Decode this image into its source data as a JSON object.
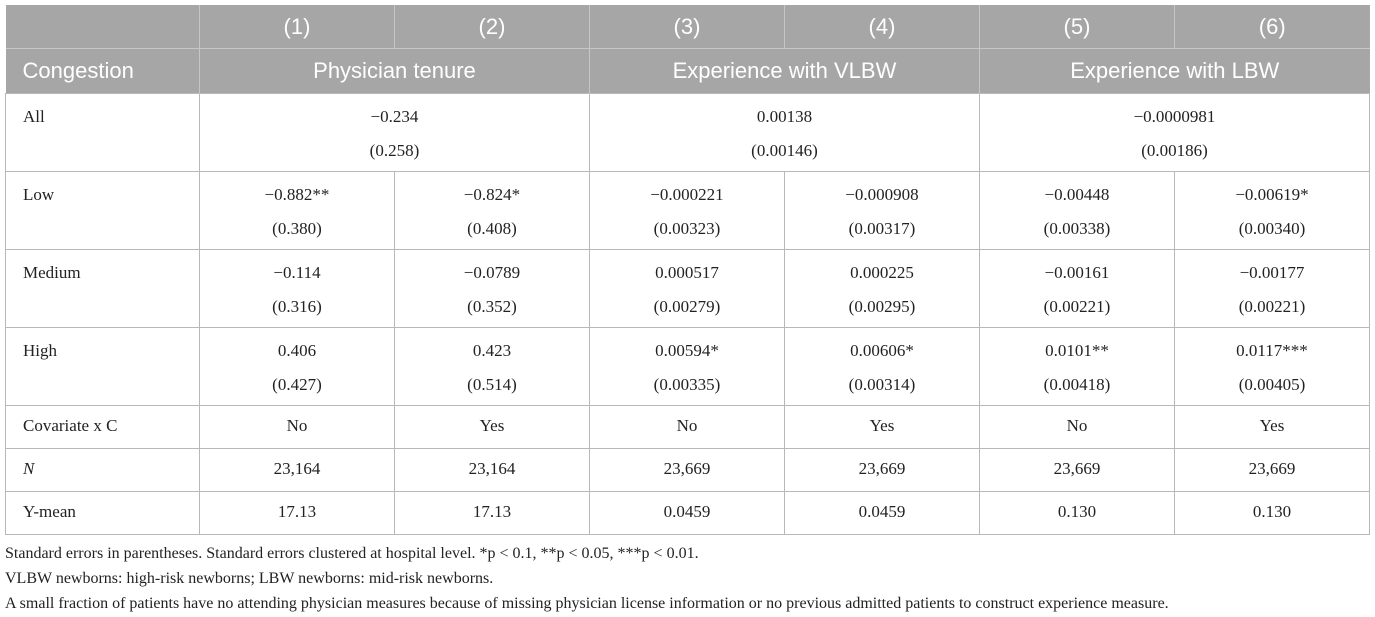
{
  "header": {
    "col_numbers": [
      "(1)",
      "(2)",
      "(3)",
      "(4)",
      "(5)",
      "(6)"
    ],
    "row_label": "Congestion",
    "groups": [
      "Physician tenure",
      "Experience with VLBW",
      "Experience with LBW"
    ]
  },
  "rows": {
    "all": {
      "label": "All",
      "values": [
        {
          "coef": "−0.234",
          "se": "(0.258)"
        },
        {
          "coef": "0.00138",
          "se": "(0.00146)"
        },
        {
          "coef": "−0.0000981",
          "se": "(0.00186)"
        }
      ]
    },
    "low": {
      "label": "Low",
      "values": [
        {
          "coef": "−0.882**",
          "se": "(0.380)"
        },
        {
          "coef": "−0.824*",
          "se": "(0.408)"
        },
        {
          "coef": "−0.000221",
          "se": "(0.00323)"
        },
        {
          "coef": "−0.000908",
          "se": "(0.00317)"
        },
        {
          "coef": "−0.00448",
          "se": "(0.00338)"
        },
        {
          "coef": "−0.00619*",
          "se": "(0.00340)"
        }
      ]
    },
    "medium": {
      "label": "Medium",
      "values": [
        {
          "coef": "−0.114",
          "se": "(0.316)"
        },
        {
          "coef": "−0.0789",
          "se": "(0.352)"
        },
        {
          "coef": "0.000517",
          "se": "(0.00279)"
        },
        {
          "coef": "0.000225",
          "se": "(0.00295)"
        },
        {
          "coef": "−0.00161",
          "se": "(0.00221)"
        },
        {
          "coef": "−0.00177",
          "se": "(0.00221)"
        }
      ]
    },
    "high": {
      "label": "High",
      "values": [
        {
          "coef": "0.406",
          "se": "(0.427)"
        },
        {
          "coef": "0.423",
          "se": "(0.514)"
        },
        {
          "coef": "0.00594*",
          "se": "(0.00335)"
        },
        {
          "coef": "0.00606*",
          "se": "(0.00314)"
        },
        {
          "coef": "0.0101**",
          "se": "(0.00418)"
        },
        {
          "coef": "0.0117***",
          "se": "(0.00405)"
        }
      ]
    },
    "covariate": {
      "label": "Covariate x C",
      "values": [
        "No",
        "Yes",
        "No",
        "Yes",
        "No",
        "Yes"
      ]
    },
    "n": {
      "label": "N",
      "values": [
        "23,164",
        "23,164",
        "23,669",
        "23,669",
        "23,669",
        "23,669"
      ]
    },
    "ymean": {
      "label": "Y-mean",
      "values": [
        "17.13",
        "17.13",
        "0.0459",
        "0.0459",
        "0.130",
        "0.130"
      ]
    }
  },
  "notes": [
    "Standard errors in parentheses. Standard errors clustered at hospital level. *p < 0.1, **p < 0.05, ***p < 0.01.",
    "VLBW newborns: high-risk newborns; LBW newborns: mid-risk newborns.",
    "A small fraction of patients have no attending physician measures because of missing physician license information or no previous admitted patients to construct experience measure."
  ],
  "colors": {
    "header_bg": "#a6a6a6",
    "header_text": "#ffffff",
    "grid": "#b8b8b8"
  }
}
